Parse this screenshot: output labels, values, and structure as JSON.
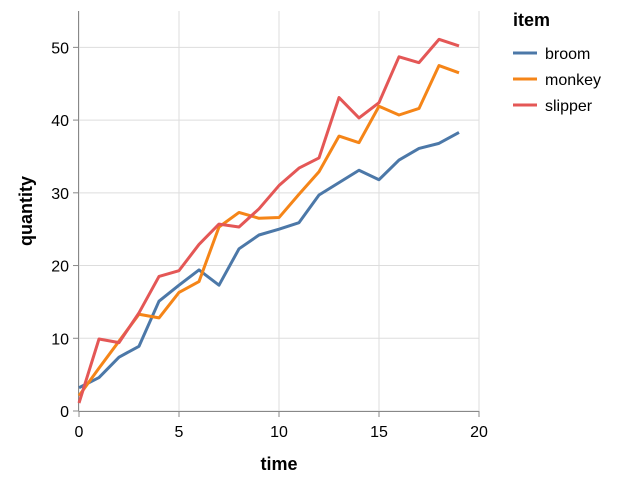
{
  "chart_data": {
    "type": "line",
    "xlabel": "time",
    "ylabel": "quantity",
    "xlim": [
      0,
      20
    ],
    "ylim": [
      0,
      55
    ],
    "xticks": [
      0,
      5,
      10,
      15,
      20
    ],
    "yticks": [
      0,
      10,
      20,
      30,
      40,
      50
    ],
    "grid": true,
    "legend": {
      "title": "item",
      "placement": "top-right"
    },
    "x": [
      0,
      1,
      2,
      3,
      4,
      5,
      6,
      7,
      8,
      9,
      10,
      11,
      12,
      13,
      14,
      15,
      16,
      17,
      18,
      19
    ],
    "series": [
      {
        "name": "broom",
        "color": "#4c78a8",
        "values": [
          3.2,
          4.6,
          7.4,
          8.9,
          15.1,
          17.3,
          19.4,
          17.3,
          22.3,
          24.2,
          25.0,
          25.9,
          29.7,
          31.4,
          33.1,
          31.8,
          34.5,
          36.1,
          36.8,
          38.3
        ]
      },
      {
        "name": "monkey",
        "color": "#f58518",
        "values": [
          2.1,
          5.9,
          9.6,
          13.3,
          12.8,
          16.3,
          17.8,
          25.3,
          27.3,
          26.5,
          26.6,
          29.8,
          32.9,
          37.8,
          36.9,
          41.9,
          40.7,
          41.6,
          47.5,
          46.5
        ]
      },
      {
        "name": "slipper",
        "color": "#e45756",
        "values": [
          1.1,
          9.9,
          9.4,
          13.5,
          18.5,
          19.3,
          22.9,
          25.7,
          25.3,
          27.8,
          31.0,
          33.4,
          34.8,
          43.1,
          40.3,
          42.4,
          48.7,
          47.9,
          51.1,
          50.2
        ]
      }
    ]
  }
}
